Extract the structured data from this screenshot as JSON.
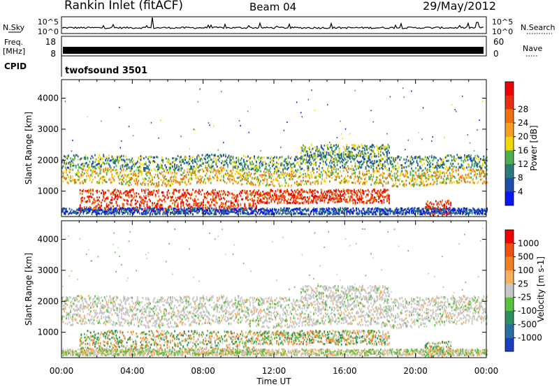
{
  "header": {
    "station": "Rankin Inlet (fitACF)",
    "beam": "Beam 04",
    "date": "29/May/2012"
  },
  "noise_panel": {
    "left_label": "N.Sky",
    "right_label": "N.Search",
    "left_ticks": [
      "10^5",
      "10^0"
    ],
    "right_ticks": [
      "10^5",
      "10^0"
    ]
  },
  "freq_panel": {
    "left_label_1": "Freq.",
    "left_label_2": "[MHz]",
    "right_label": "Nave",
    "left_ticks": [
      "18",
      "8"
    ],
    "right_ticks": [
      "60",
      "0"
    ]
  },
  "cpid": {
    "label": "CPID",
    "value": "twofsound 3501"
  },
  "chart_data": [
    {
      "type": "heatmap",
      "parameter": "Power",
      "ylabel": "Slant Range [km]",
      "xlabel": "Time UT",
      "ylim": [
        180,
        4600
      ],
      "xlim_hours": [
        0,
        24
      ],
      "y_ticks": [
        "1000",
        "2000",
        "3000",
        "4000"
      ],
      "x_ticks": [
        "00:00",
        "04:00",
        "08:00",
        "12:00",
        "16:00",
        "20:00",
        "00:00"
      ],
      "colorbar_label": "Power [dB]",
      "colorbar_ticks": [
        "4",
        "8",
        "12",
        "16",
        "20",
        "24",
        "28"
      ],
      "colorbar_colors": [
        "#0a16f5",
        "#1f4fa8",
        "#2e7a7a",
        "#4fae4f",
        "#f0d80a",
        "#f5a020",
        "#f07010",
        "#e83010",
        "#f00000"
      ]
    },
    {
      "type": "heatmap",
      "parameter": "Velocity",
      "ylabel": "Slant Range [km]",
      "xlabel": "Time UT",
      "ylim": [
        180,
        4600
      ],
      "xlim_hours": [
        0,
        24
      ],
      "y_ticks": [
        "1000",
        "2000",
        "3000",
        "4000"
      ],
      "x_ticks": [
        "00:00",
        "04:00",
        "08:00",
        "12:00",
        "16:00",
        "20:00",
        "00:00"
      ],
      "colorbar_label": "Velocity [m s-1]",
      "colorbar_ticks": [
        "1000",
        "500",
        "100",
        "25",
        "-25",
        "-100",
        "-500",
        "-1000"
      ],
      "colorbar_colors": [
        "#1a3fc0",
        "#2a6fa0",
        "#2e9060",
        "#5ac040",
        "#c8c8c8",
        "#f5b060",
        "#f08020",
        "#f05010",
        "#f00000"
      ]
    }
  ]
}
